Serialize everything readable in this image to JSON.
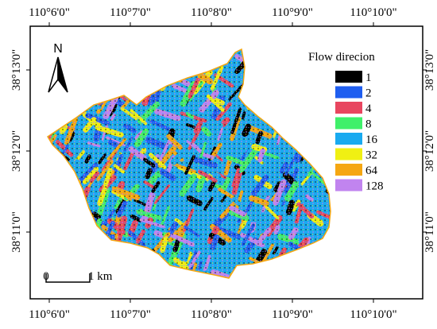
{
  "lon_labels": [
    "110°6'0\"",
    "110°7'0\"",
    "110°8'0\"",
    "110°9'0\"",
    "110°10'0\""
  ],
  "lat_labels": [
    "38°13'0\"",
    "38°12'0\"",
    "38°11'0\""
  ],
  "north_label": "N",
  "legend": {
    "title": "Flow direcion",
    "items": [
      {
        "label": "1",
        "color": "#000000"
      },
      {
        "label": "2",
        "color": "#1f5ef0"
      },
      {
        "label": "4",
        "color": "#e8465f"
      },
      {
        "label": "8",
        "color": "#3ff06a"
      },
      {
        "label": "16",
        "color": "#19aaf0"
      },
      {
        "label": "32",
        "color": "#f0f013"
      },
      {
        "label": "64",
        "color": "#f5a712"
      },
      {
        "label": "128",
        "color": "#c184ef"
      }
    ]
  },
  "scale_bar": {
    "start_label": "0",
    "end_label": "1 km"
  }
}
